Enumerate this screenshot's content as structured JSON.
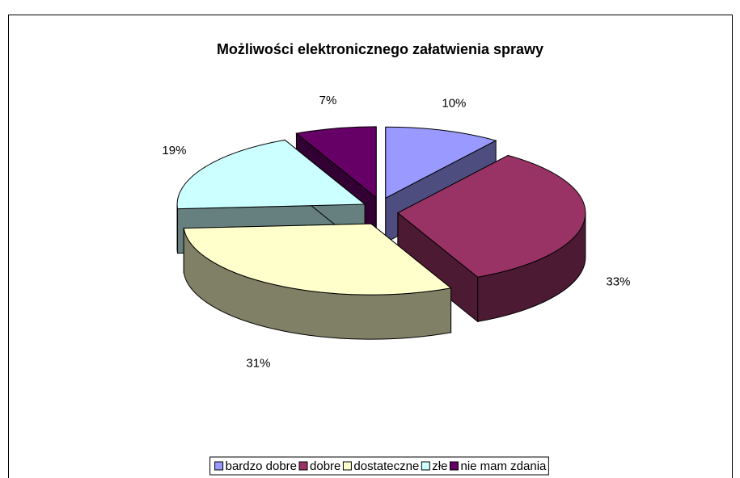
{
  "chart_data": {
    "type": "pie3d",
    "title": "Możliwości elektronicznego załatwienia sprawy",
    "categories": [
      "bardzo dobre",
      "dobre",
      "dostateczne",
      "złe",
      "nie mam zdania"
    ],
    "values": [
      10,
      33,
      31,
      19,
      7
    ],
    "value_labels": [
      "10%",
      "33%",
      "31%",
      "19%",
      "7%"
    ],
    "colors": [
      "#9999ff",
      "#993366",
      "#ffffcc",
      "#ccffff",
      "#660066"
    ],
    "legend": "bottom"
  }
}
